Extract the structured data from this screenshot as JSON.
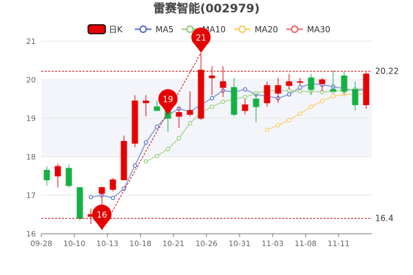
{
  "chart_data": {
    "type": "candlestick",
    "title": "雷赛智能(002979)",
    "legend": [
      {
        "name": "日K",
        "color": "#e60000",
        "kind": "candle"
      },
      {
        "name": "MA5",
        "color": "#5470c6",
        "kind": "line"
      },
      {
        "name": "MA10",
        "color": "#91cc75",
        "kind": "line"
      },
      {
        "name": "MA20",
        "color": "#fac858",
        "kind": "line"
      },
      {
        "name": "MA30",
        "color": "#ee6666",
        "kind": "line"
      }
    ],
    "ylim": [
      16,
      21
    ],
    "y_ticks": [
      16,
      17,
      18,
      19,
      20,
      21
    ],
    "x_tick_labels": [
      "09-28",
      "10-10",
      "10-13",
      "10-18",
      "10-21",
      "10-26",
      "10-31",
      "11-03",
      "11-08",
      "11-11"
    ],
    "x_tick_indices": [
      0,
      3,
      6,
      9,
      12,
      15,
      18,
      21,
      24,
      27
    ],
    "reference_lines": [
      {
        "value": 20.22,
        "label": "20.22"
      },
      {
        "value": 16.4,
        "label": "16.4"
      }
    ],
    "markers": [
      {
        "label": "16",
        "index": 5,
        "value": 16.1
      },
      {
        "label": "19",
        "index": 11,
        "value": 19.1
      },
      {
        "label": "21",
        "index": 14,
        "value": 20.7
      }
    ],
    "colors": {
      "up": "#e60000",
      "down": "#14b143",
      "axis": "#999999",
      "grid": "#e6e6e6",
      "band": "#f3f5fa"
    },
    "candles": [
      {
        "open": 17.65,
        "close": 17.4,
        "low": 17.25,
        "high": 17.75
      },
      {
        "open": 17.5,
        "close": 17.75,
        "low": 17.2,
        "high": 17.82
      },
      {
        "open": 17.7,
        "close": 17.25,
        "low": 17.2,
        "high": 17.8
      },
      {
        "open": 17.2,
        "close": 16.4,
        "low": 16.35,
        "high": 17.2
      },
      {
        "open": 16.45,
        "close": 16.5,
        "low": 16.25,
        "high": 16.65
      },
      {
        "open": 17.05,
        "close": 17.2,
        "low": 16.1,
        "high": 17.22
      },
      {
        "open": 17.15,
        "close": 17.4,
        "low": 17.1,
        "high": 17.45
      },
      {
        "open": 17.4,
        "close": 18.4,
        "low": 17.4,
        "high": 18.55
      },
      {
        "open": 18.35,
        "close": 19.45,
        "low": 18.25,
        "high": 19.6
      },
      {
        "open": 19.4,
        "close": 19.45,
        "low": 19.05,
        "high": 19.6
      },
      {
        "open": 19.3,
        "close": 19.2,
        "low": 19.2,
        "high": 19.45
      },
      {
        "open": 19.4,
        "close": 19.0,
        "low": 18.65,
        "high": 19.5
      },
      {
        "open": 19.05,
        "close": 19.15,
        "low": 18.75,
        "high": 19.3
      },
      {
        "open": 19.1,
        "close": 19.2,
        "low": 19.05,
        "high": 19.7
      },
      {
        "open": 19.0,
        "close": 20.25,
        "low": 18.95,
        "high": 20.7
      },
      {
        "open": 20.05,
        "close": 20.1,
        "low": 19.6,
        "high": 20.35
      },
      {
        "open": 19.8,
        "close": 19.95,
        "low": 19.55,
        "high": 20.35
      },
      {
        "open": 19.8,
        "close": 19.1,
        "low": 19.05,
        "high": 20.05
      },
      {
        "open": 19.2,
        "close": 19.35,
        "low": 19.1,
        "high": 19.5
      },
      {
        "open": 19.5,
        "close": 19.3,
        "low": 18.9,
        "high": 19.65
      },
      {
        "open": 19.4,
        "close": 19.85,
        "low": 19.3,
        "high": 19.95
      },
      {
        "open": 19.65,
        "close": 19.85,
        "low": 19.4,
        "high": 20.05
      },
      {
        "open": 19.85,
        "close": 19.95,
        "low": 19.75,
        "high": 20.15
      },
      {
        "open": 19.95,
        "close": 19.95,
        "low": 19.85,
        "high": 20.05
      },
      {
        "open": 20.05,
        "close": 19.75,
        "low": 19.6,
        "high": 20.15
      },
      {
        "open": 19.9,
        "close": 20.0,
        "low": 19.7,
        "high": 20.05
      },
      {
        "open": 19.75,
        "close": 19.7,
        "low": 19.7,
        "high": 20.25
      },
      {
        "open": 20.1,
        "close": 19.7,
        "low": 19.6,
        "high": 20.2
      },
      {
        "open": 19.75,
        "close": 19.35,
        "low": 19.2,
        "high": 19.95
      },
      {
        "open": 19.35,
        "close": 20.15,
        "low": 19.25,
        "high": 20.2
      }
    ],
    "ma_series": [
      {
        "name": "MA5",
        "color": "#5470c6",
        "start_index": 4,
        "values": [
          16.95,
          17.0,
          16.93,
          17.17,
          17.77,
          18.37,
          18.78,
          19.08,
          19.25,
          19.17,
          19.35,
          19.52,
          19.72,
          19.68,
          19.75,
          19.62,
          19.57,
          19.52,
          19.62,
          19.8,
          19.9,
          19.87,
          19.82,
          19.77,
          19.72,
          19.75
        ]
      },
      {
        "name": "MA10",
        "color": "#91cc75",
        "start_index": 9,
        "values": [
          17.88,
          18.02,
          18.2,
          18.48,
          18.87,
          19.15,
          19.3,
          19.43,
          19.5,
          19.55,
          19.65,
          19.72,
          19.72,
          19.72,
          19.7,
          19.7,
          19.68,
          19.7,
          19.72,
          19.75,
          19.78
        ]
      },
      {
        "name": "MA20",
        "color": "#fac858",
        "start_index": 20,
        "values": [
          18.7,
          18.82,
          18.95,
          19.12,
          19.3,
          19.45,
          19.57,
          19.62,
          19.62,
          19.62
        ]
      }
    ]
  }
}
